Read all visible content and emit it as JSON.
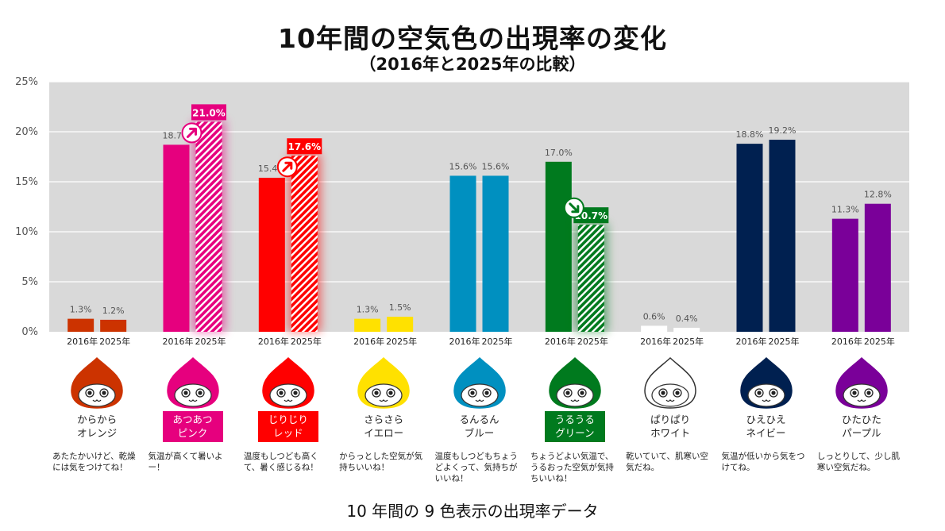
{
  "title": "10年間の空気色の出現率の変化",
  "subtitle": "（2016年と2025年の比較）",
  "caption": "10 年間の 9 色表示の出現率データ",
  "chart_data": {
    "type": "bar",
    "title": "10年間の空気色の出現率の変化",
    "subtitle": "（2016年と2025年の比較）",
    "ylim": [
      0,
      25
    ],
    "yticks": [
      "0%",
      "5%",
      "10%",
      "15%",
      "20%",
      "25%"
    ],
    "grid": true,
    "year_labels": [
      "2016年",
      "2025年"
    ],
    "categories": [
      {
        "name1": "からから",
        "name2": "オレンジ",
        "color": "#cc3300",
        "v2016": 1.3,
        "v2025": 1.2,
        "l2016": "1.3%",
        "l2025": "1.2%",
        "highlight": false,
        "trend": "",
        "desc": "あたたかいけど、乾燥には気をつけてね！"
      },
      {
        "name1": "あつあつ",
        "name2": "ピンク",
        "color": "#e6007e",
        "v2016": 18.7,
        "v2025": 21.0,
        "l2016": "18.7%",
        "l2025": "21.0%",
        "highlight": true,
        "trend": "up",
        "desc": "気温が高くて暑いよー！"
      },
      {
        "name1": "じりじり",
        "name2": "レッド",
        "color": "#ff0000",
        "v2016": 15.4,
        "v2025": 17.6,
        "l2016": "15.4%",
        "l2025": "17.6%",
        "highlight": true,
        "trend": "up",
        "desc": "温度もしつども高くて、暑く感じるね！"
      },
      {
        "name1": "さらさら",
        "name2": "イエロー",
        "color": "#ffe100",
        "v2016": 1.3,
        "v2025": 1.5,
        "l2016": "1.3%",
        "l2025": "1.5%",
        "highlight": false,
        "trend": "",
        "desc": "からっとした空気が気持ちいいね！"
      },
      {
        "name1": "るんるん",
        "name2": "ブルー",
        "color": "#0090c0",
        "v2016": 15.6,
        "v2025": 15.6,
        "l2016": "15.6%",
        "l2025": "15.6%",
        "highlight": false,
        "trend": "",
        "desc": "温度もしつどもちょうどよくって、気持ちがいいね！"
      },
      {
        "name1": "うるうる",
        "name2": "グリーン",
        "color": "#007a1e",
        "v2016": 17.0,
        "v2025": 10.7,
        "l2016": "17.0%",
        "l2025": "10.7%",
        "highlight": true,
        "trend": "down",
        "desc": "ちょうどよい気温で、うるおった空気が気持ちいいね！"
      },
      {
        "name1": "ぱりぱり",
        "name2": "ホワイト",
        "color": "#ffffff",
        "v2016": 0.6,
        "v2025": 0.4,
        "l2016": "0.6%",
        "l2025": "0.4%",
        "highlight": false,
        "trend": "",
        "desc": "乾いていて、肌寒い空気だね。"
      },
      {
        "name1": "ひえひえ",
        "name2": "ネイビー",
        "color": "#002050",
        "v2016": 18.8,
        "v2025": 19.2,
        "l2016": "18.8%",
        "l2025": "19.2%",
        "highlight": false,
        "trend": "",
        "desc": "気温が低いから気をつけてね。"
      },
      {
        "name1": "ひたひた",
        "name2": "パープル",
        "color": "#7a0099",
        "v2016": 11.3,
        "v2025": 12.8,
        "l2016": "11.3%",
        "l2025": "12.8%",
        "highlight": false,
        "trend": "",
        "desc": "しっとりして、少し肌寒い空気だね。"
      }
    ]
  }
}
